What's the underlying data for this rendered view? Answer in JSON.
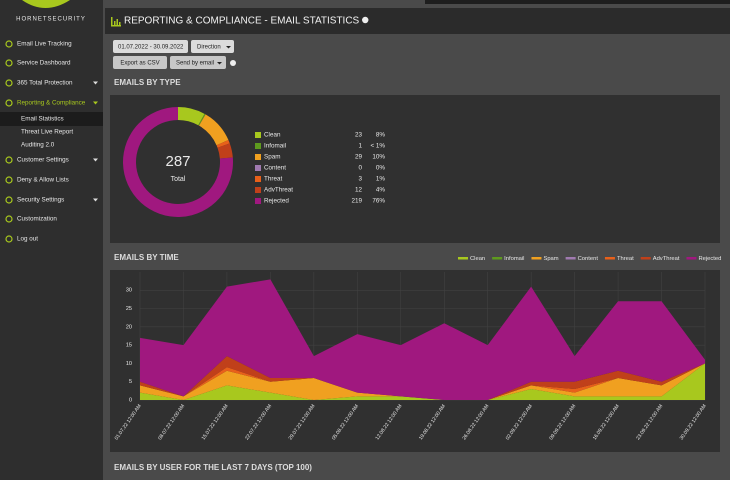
{
  "brand": "HORNETSECURITY",
  "sidebar": [
    {
      "label": "Email Live Tracking"
    },
    {
      "label": "Service Dashboard"
    },
    {
      "label": "365 Total Protection",
      "expandable": true
    },
    {
      "label": "Reporting & Compliance",
      "expandable": true,
      "active": true
    },
    {
      "label": "Email Statistics",
      "sub": true,
      "active": true
    },
    {
      "label": "Threat Live Report",
      "sub": true
    },
    {
      "label": "Auditing 2.0",
      "sub": true
    },
    {
      "label": "Customer Settings",
      "expandable": true
    },
    {
      "label": "Deny & Allow Lists"
    },
    {
      "label": "Security Settings",
      "expandable": true
    },
    {
      "label": "Customization"
    },
    {
      "label": "Log out"
    }
  ],
  "header": {
    "title": "REPORTING & COMPLIANCE - EMAIL STATISTICS"
  },
  "toolbar": {
    "date_range": "01.07.2022 - 30.09.2022",
    "direction": "Direction",
    "export": "Export as CSV",
    "send": "Send by email"
  },
  "sections": {
    "by_type": "EMAILS BY TYPE",
    "by_time": "EMAILS BY TIME",
    "by_user": "EMAILS BY USER FOR THE LAST 7 DAYS (TOP 100)"
  },
  "chart_data": [
    {
      "type": "pie",
      "donut": true,
      "total": 287,
      "total_label": "Total",
      "categories": [
        "Clean",
        "Infomail",
        "Spam",
        "Content",
        "Threat",
        "AdvThreat",
        "Rejected"
      ],
      "values": [
        23,
        1,
        29,
        0,
        3,
        12,
        219
      ],
      "percent_labels": [
        "8%",
        "< 1%",
        "10%",
        "0%",
        "1%",
        "4%",
        "76%"
      ],
      "colors": [
        "#a8c81e",
        "#5e9a1e",
        "#f0a020",
        "#a07ab0",
        "#e8601a",
        "#c0401a",
        "#a0187f"
      ]
    },
    {
      "type": "area",
      "stacked": true,
      "grid": true,
      "x": [
        "01.07.22 12:00 AM",
        "08.07.22 12:00 AM",
        "15.07.22 12:00 AM",
        "22.07.22 12:00 AM",
        "29.07.22 12:00 AM",
        "05.08.22 12:00 AM",
        "12.08.22 12:00 AM",
        "19.08.22 12:00 AM",
        "26.08.22 12:00 AM",
        "02.09.22 12:00 AM",
        "09.09.22 12:00 AM",
        "16.09.22 12:00 AM",
        "23.09.22 12:00 AM",
        "30.09.22 12:00 AM"
      ],
      "ylim": [
        0,
        35
      ],
      "yticks": [
        0,
        5,
        10,
        15,
        20,
        25,
        30
      ],
      "series": [
        {
          "name": "Clean",
          "color": "#a8c81e",
          "values": [
            2,
            0,
            4,
            2,
            0,
            1,
            1,
            0,
            0,
            3,
            1,
            1,
            1,
            10
          ]
        },
        {
          "name": "Infomail",
          "color": "#5e9a1e",
          "values": [
            0,
            0,
            0,
            0,
            0,
            0,
            0,
            0,
            0,
            0,
            0,
            0,
            0,
            0
          ]
        },
        {
          "name": "Spam",
          "color": "#f0a020",
          "values": [
            2,
            1,
            4,
            3,
            6,
            1,
            0,
            0,
            0,
            1,
            1,
            5,
            3,
            0
          ]
        },
        {
          "name": "Content",
          "color": "#a07ab0",
          "values": [
            0,
            0,
            0,
            0,
            0,
            0,
            0,
            0,
            0,
            0,
            0,
            0,
            0,
            0
          ]
        },
        {
          "name": "Threat",
          "color": "#e8601a",
          "values": [
            0,
            0,
            1,
            0,
            0,
            0,
            0,
            0,
            0,
            0,
            1,
            0,
            0,
            0
          ]
        },
        {
          "name": "AdvThreat",
          "color": "#c0401a",
          "values": [
            1,
            0,
            3,
            1,
            0,
            0,
            0,
            0,
            0,
            1,
            2,
            2,
            1,
            0
          ]
        },
        {
          "name": "Rejected",
          "color": "#a0187f",
          "values": [
            12,
            14,
            19,
            27,
            6,
            16,
            14,
            21,
            15,
            26,
            7,
            19,
            22,
            1
          ]
        }
      ]
    }
  ]
}
